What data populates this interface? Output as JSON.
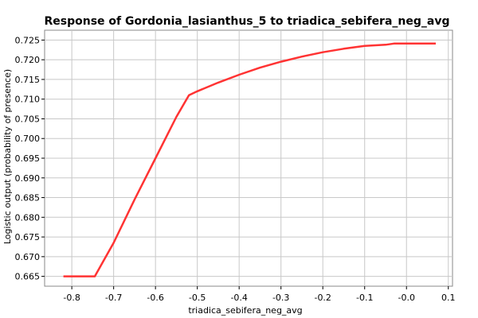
{
  "chart_data": {
    "type": "line",
    "title": "Response of Gordonia_lasianthus_5 to triadica_sebifera_neg_avg",
    "xlabel": "triadica_sebifera_neg_avg",
    "ylabel": "Logistic output (probability of presence)",
    "xlim": [
      -0.865,
      0.11
    ],
    "ylim": [
      0.6625,
      0.7275
    ],
    "xticks": [
      -0.8,
      -0.7,
      -0.6,
      -0.5,
      -0.4,
      -0.3,
      -0.2,
      -0.1,
      -0.0,
      0.1
    ],
    "xtick_labels": [
      "-0.8",
      "-0.7",
      "-0.6",
      "-0.5",
      "-0.4",
      "-0.3",
      "-0.2",
      "-0.1",
      "-0.0",
      "0.1"
    ],
    "yticks": [
      0.665,
      0.67,
      0.675,
      0.68,
      0.685,
      0.69,
      0.695,
      0.7,
      0.705,
      0.71,
      0.715,
      0.72,
      0.725
    ],
    "ytick_labels": [
      "0.665",
      "0.670",
      "0.675",
      "0.680",
      "0.685",
      "0.690",
      "0.695",
      "0.700",
      "0.705",
      "0.710",
      "0.715",
      "0.720",
      "0.725"
    ],
    "grid": true,
    "series": [
      {
        "color": "#ff3333",
        "x": [
          -0.82,
          -0.745,
          -0.7,
          -0.65,
          -0.6,
          -0.55,
          -0.52,
          -0.5,
          -0.45,
          -0.4,
          -0.35,
          -0.3,
          -0.25,
          -0.2,
          -0.15,
          -0.1,
          -0.05,
          -0.03,
          0.07
        ],
        "y": [
          0.665,
          0.665,
          0.6735,
          0.6845,
          0.695,
          0.7055,
          0.711,
          0.712,
          0.7142,
          0.7162,
          0.718,
          0.7195,
          0.7208,
          0.7219,
          0.7228,
          0.7235,
          0.7238,
          0.7241,
          0.7241
        ]
      }
    ]
  }
}
